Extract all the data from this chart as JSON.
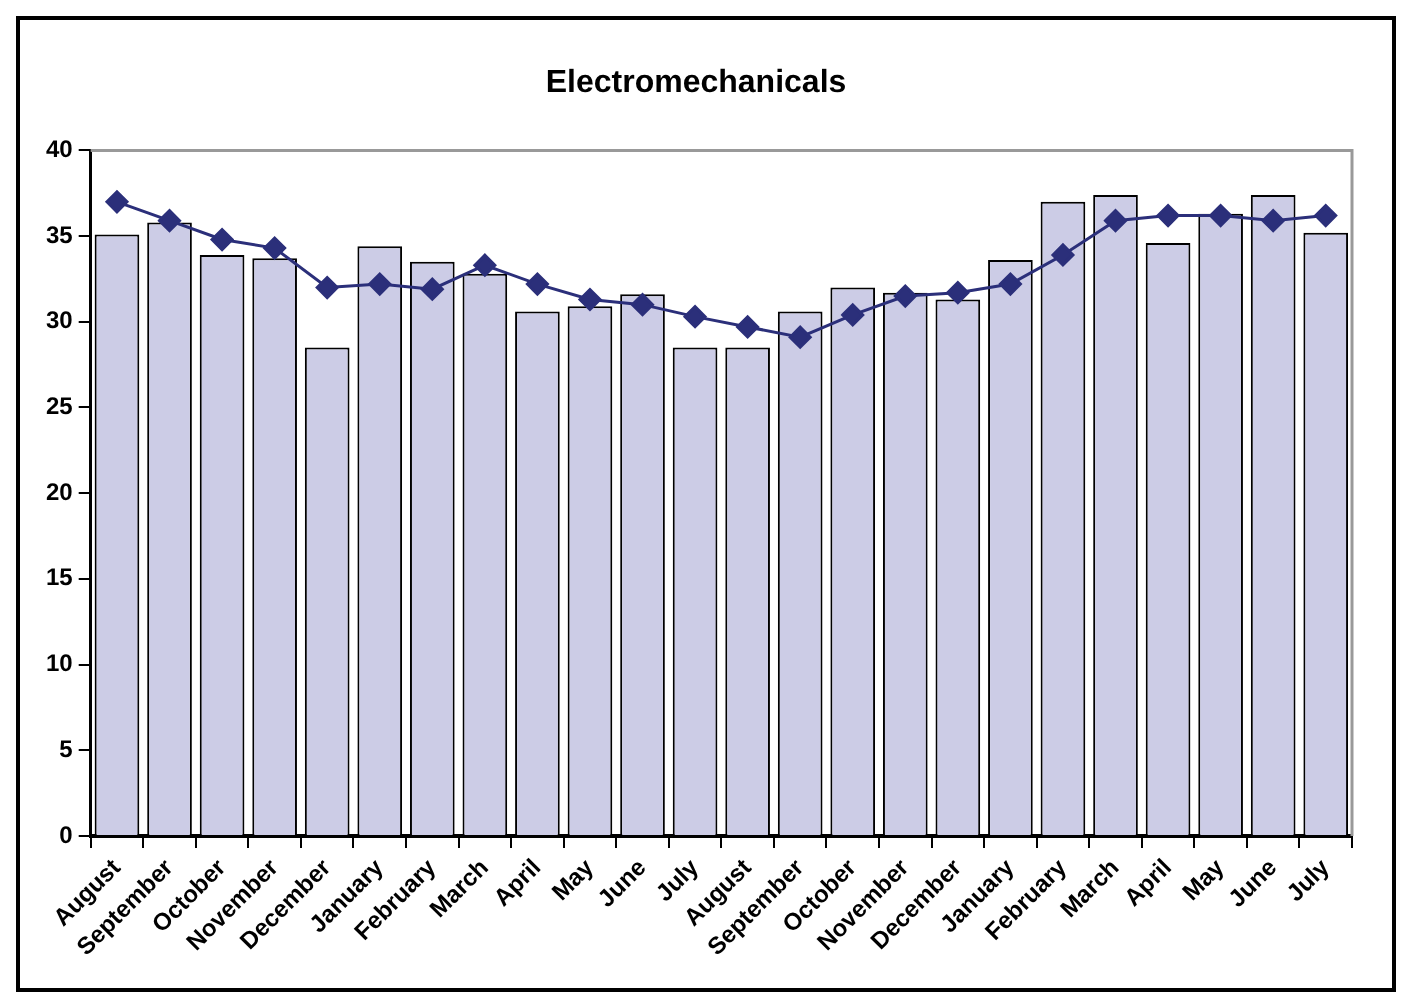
{
  "chart_data": {
    "type": "bar",
    "title": "Electromechanicals",
    "categories": [
      "August",
      "September",
      "October",
      "November",
      "December",
      "January",
      "February",
      "March",
      "April",
      "May",
      "June",
      "July",
      "August",
      "September",
      "October",
      "November",
      "December",
      "January",
      "February",
      "March",
      "April",
      "May",
      "June",
      "July"
    ],
    "series": [
      {
        "color": "#ccccE6",
        "values": [
          35.1,
          35.8,
          33.9,
          33.7,
          28.5,
          34.4,
          33.5,
          32.8,
          30.6,
          30.9,
          31.6,
          28.5,
          28.5,
          30.6,
          32.0,
          31.7,
          31.3,
          33.6,
          37.0,
          37.4,
          34.6,
          36.3,
          37.4,
          35.2
        ]
      },
      {
        "type": "line",
        "color": "#2b2f7a",
        "marker": "diamond",
        "values": [
          37.0,
          35.9,
          34.8,
          34.3,
          32.0,
          32.2,
          31.9,
          33.3,
          32.2,
          31.3,
          31.0,
          30.3,
          29.7,
          29.1,
          30.4,
          31.5,
          31.7,
          32.2,
          33.9,
          35.9,
          36.2,
          36.2,
          35.9,
          36.2
        ]
      }
    ],
    "ylim": [
      0,
      40
    ],
    "yticks": [
      0,
      5,
      10,
      15,
      20,
      25,
      30,
      35,
      40
    ],
    "grid": false,
    "legend": false
  }
}
